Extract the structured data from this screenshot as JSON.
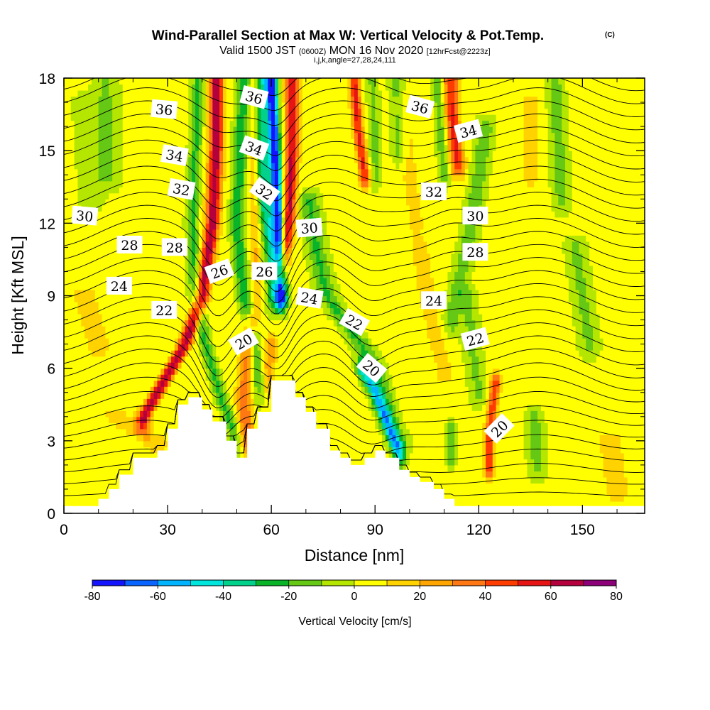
{
  "title": {
    "main": "Wind-Parallel Section at Max W: Vertical Velocity & Pot.Temp.",
    "copyright": "(C)",
    "valid_prefix": "Valid 1500 JST",
    "zulu": "(0600Z)",
    "valid_date": "MON 16 Nov 2020",
    "forecast": "[12hrFcst@2223z]",
    "indices": "i,j,k,angle=27,28,24,111"
  },
  "colorbar": {
    "label": "Vertical Velocity [cm/s]",
    "tick_labels": [
      "-80",
      "-60",
      "-40",
      "-20",
      "0",
      "20",
      "40",
      "60",
      "80"
    ],
    "levels": [
      -80,
      -70,
      -60,
      -50,
      -40,
      -30,
      -20,
      -10,
      0,
      10,
      20,
      30,
      40,
      50,
      60,
      70,
      80
    ],
    "colors": [
      "#1414ff",
      "#0a64ff",
      "#00b4ff",
      "#00e6dc",
      "#00d28c",
      "#0ab428",
      "#64c814",
      "#b4e600",
      "#ffff00",
      "#ffd200",
      "#ffa500",
      "#ff7814",
      "#ff3c00",
      "#e61414",
      "#b4003c",
      "#8c0078"
    ]
  },
  "chart_data": {
    "type": "heatmap",
    "title": "Wind-Parallel Section at Max W: Vertical Velocity & Pot.Temp.",
    "xlabel": "Distance [nm]",
    "ylabel": "Height [Kft MSL]",
    "xlim": [
      0,
      168
    ],
    "ylim": [
      0,
      18
    ],
    "xticks": [
      0,
      30,
      60,
      90,
      120,
      150
    ],
    "yticks": [
      0,
      3,
      6,
      9,
      12,
      15,
      18
    ],
    "x_tick_labels": [
      "0",
      "30",
      "60",
      "90",
      "120",
      "150"
    ],
    "y_tick_labels": [
      "0",
      "3",
      "6",
      "9",
      "12",
      "15",
      "18"
    ],
    "terrain": {
      "x": [
        0,
        10,
        10,
        13,
        13,
        16,
        16,
        20,
        20,
        27,
        27,
        30,
        30,
        33,
        33,
        36,
        36,
        40,
        40,
        43,
        43,
        47,
        47,
        50,
        50,
        53,
        53,
        56,
        56,
        60,
        60,
        67,
        67,
        70,
        70,
        73,
        73,
        77,
        77,
        80,
        80,
        83,
        83,
        87,
        87,
        90,
        90,
        93,
        93,
        97,
        97,
        100,
        100,
        103,
        103,
        107,
        107,
        110,
        110,
        113,
        113,
        118,
        118,
        168
      ],
      "y": [
        0.3,
        0.3,
        0.6,
        0.6,
        1.0,
        1.0,
        1.6,
        1.6,
        2.3,
        2.3,
        2.6,
        2.6,
        3.5,
        3.5,
        4.5,
        4.5,
        4.8,
        4.8,
        4.3,
        4.3,
        3.8,
        3.8,
        3.0,
        3.0,
        2.3,
        2.3,
        3.5,
        3.5,
        4.2,
        4.2,
        5.5,
        5.5,
        4.8,
        4.8,
        4.2,
        4.2,
        3.5,
        3.5,
        2.6,
        2.6,
        2.3,
        2.3,
        2.0,
        2.0,
        2.3,
        2.3,
        2.6,
        2.6,
        2.3,
        2.3,
        1.8,
        1.8,
        1.5,
        1.5,
        1.3,
        1.3,
        1.0,
        1.0,
        0.6,
        0.6,
        0.3,
        0.3,
        0.3,
        0.3
      ]
    },
    "velocity_features": [
      {
        "x": [
          44,
          44,
          43,
          40,
          35,
          31,
          27,
          23
        ],
        "y": [
          18,
          15,
          12,
          9,
          7,
          6,
          5,
          4
        ],
        "value": 65,
        "sigma_x": 2.0
      },
      {
        "x": [
          39,
          38,
          37,
          38,
          41,
          45,
          50
        ],
        "y": [
          18,
          15,
          12,
          9,
          7,
          5,
          3
        ],
        "value": -25,
        "sigma_x": 1.8
      },
      {
        "x": [
          52,
          51,
          50,
          52,
          55,
          57
        ],
        "y": [
          18,
          15,
          12,
          9,
          7,
          5
        ],
        "value": -30,
        "sigma_x": 2.0
      },
      {
        "x": [
          55,
          55,
          55,
          56
        ],
        "y": [
          18,
          15,
          12,
          9
        ],
        "value": 18,
        "sigma_x": 1.5
      },
      {
        "x": [
          60,
          61,
          62,
          63,
          63
        ],
        "y": [
          18,
          15,
          12,
          10,
          9
        ],
        "value": -80,
        "sigma_x": 1.6
      },
      {
        "x": [
          57,
          57,
          58,
          60,
          61
        ],
        "y": [
          18,
          16,
          13,
          11,
          9
        ],
        "value": -40,
        "sigma_x": 2.2
      },
      {
        "x": [
          66,
          66,
          65,
          63
        ],
        "y": [
          18,
          15,
          12,
          10
        ],
        "value": 60,
        "sigma_x": 1.8
      },
      {
        "x": [
          54,
          53,
          52,
          53
        ],
        "y": [
          8,
          6,
          5,
          3
        ],
        "value": 35,
        "sigma_x": 2.2
      },
      {
        "x": [
          60,
          59,
          58
        ],
        "y": [
          7,
          6,
          5
        ],
        "value": 25,
        "sigma_x": 2.0
      },
      {
        "x": [
          71,
          73,
          76,
          81,
          86,
          90,
          94,
          97
        ],
        "y": [
          13,
          11,
          9,
          8,
          7,
          6,
          4,
          3
        ],
        "value": -25,
        "sigma_x": 2.8
      },
      {
        "x": [
          86,
          90,
          94,
          97
        ],
        "y": [
          6,
          5,
          3.5,
          2.5
        ],
        "value": -45,
        "sigma_x": 1.8
      },
      {
        "x": [
          84,
          85,
          87
        ],
        "y": [
          18,
          16,
          14
        ],
        "value": 50,
        "sigma_x": 1.5
      },
      {
        "x": [
          89,
          90,
          90
        ],
        "y": [
          18,
          16,
          14
        ],
        "value": -15,
        "sigma_x": 1.8
      },
      {
        "x": [
          96,
          97
        ],
        "y": [
          18,
          15
        ],
        "value": -20,
        "sigma_x": 2.0
      },
      {
        "x": [
          112,
          112,
          113,
          114
        ],
        "y": [
          18,
          17,
          15.5,
          14.5
        ],
        "value": 50,
        "sigma_x": 2.0
      },
      {
        "x": [
          108,
          109,
          110
        ],
        "y": [
          18,
          16,
          14
        ],
        "value": -20,
        "sigma_x": 1.5
      },
      {
        "x": [
          122,
          120,
          118,
          115,
          112
        ],
        "y": [
          16,
          14,
          12,
          10,
          8
        ],
        "value": -20,
        "sigma_x": 2.5
      },
      {
        "x": [
          103,
          105,
          108,
          110
        ],
        "y": [
          11,
          9,
          7,
          6
        ],
        "value": 15,
        "sigma_x": 2.5
      },
      {
        "x": [
          117,
          118,
          120
        ],
        "y": [
          9,
          7,
          5
        ],
        "value": -15,
        "sigma_x": 2.5
      },
      {
        "x": [
          125,
          124,
          123,
          123
        ],
        "y": [
          5.5,
          4.5,
          3,
          2
        ],
        "value": 45,
        "sigma_x": 1.5
      },
      {
        "x": [
          112,
          112
        ],
        "y": [
          3.5,
          2.5
        ],
        "value": -25,
        "sigma_x": 1.2
      },
      {
        "x": [
          136,
          137
        ],
        "y": [
          4,
          2
        ],
        "value": -18,
        "sigma_x": 2.5
      },
      {
        "x": [
          142,
          144
        ],
        "y": [
          18,
          13
        ],
        "value": -18,
        "sigma_x": 2.5
      },
      {
        "x": [
          148,
          152
        ],
        "y": [
          11,
          7
        ],
        "value": -15,
        "sigma_x": 3.0
      },
      {
        "x": [
          135,
          135
        ],
        "y": [
          17,
          14
        ],
        "value": 12,
        "sigma_x": 3.0
      },
      {
        "x": [
          12,
          13
        ],
        "y": [
          18,
          14
        ],
        "value": -15,
        "sigma_x": 3.5
      },
      {
        "x": [
          6,
          8
        ],
        "y": [
          17,
          13
        ],
        "value": -10,
        "sigma_x": 3.5
      },
      {
        "x": [
          15,
          20,
          27
        ],
        "y": [
          4,
          3.5,
          3
        ],
        "value": 15,
        "sigma_x": 4.0
      },
      {
        "x": [
          6,
          8,
          10
        ],
        "y": [
          9,
          8,
          7
        ],
        "value": 12,
        "sigma_x": 4.0
      },
      {
        "x": [
          158,
          160
        ],
        "y": [
          3,
          1
        ],
        "value": 12,
        "sigma_x": 4.0
      },
      {
        "x": [
          98,
          100,
          102
        ],
        "y": [
          17,
          14,
          12
        ],
        "value": 10,
        "sigma_x": 3.0
      }
    ],
    "theta_contour_count": 33,
    "theta_labels": [
      {
        "text": "36",
        "x": 29,
        "y": 16.7,
        "angle": 5
      },
      {
        "text": "36",
        "x": 55,
        "y": 17.2,
        "angle": 15
      },
      {
        "text": "36",
        "x": 103,
        "y": 16.8,
        "angle": 15
      },
      {
        "text": "34",
        "x": 32,
        "y": 14.8,
        "angle": 10
      },
      {
        "text": "34",
        "x": 55,
        "y": 15.1,
        "angle": 20
      },
      {
        "text": "34",
        "x": 117,
        "y": 15.8,
        "angle": -15
      },
      {
        "text": "32",
        "x": 34,
        "y": 13.4,
        "angle": 10
      },
      {
        "text": "32",
        "x": 58,
        "y": 13.3,
        "angle": 35
      },
      {
        "text": "32",
        "x": 107,
        "y": 13.3,
        "angle": 0
      },
      {
        "text": "30",
        "x": 6,
        "y": 12.3,
        "angle": 5
      },
      {
        "text": "30",
        "x": 71,
        "y": 11.8,
        "angle": -5
      },
      {
        "text": "30",
        "x": 119,
        "y": 12.3,
        "angle": 0
      },
      {
        "text": "28",
        "x": 19,
        "y": 11.1,
        "angle": 0
      },
      {
        "text": "28",
        "x": 32,
        "y": 11.0,
        "angle": 0
      },
      {
        "text": "28",
        "x": 119,
        "y": 10.8,
        "angle": 0
      },
      {
        "text": "26",
        "x": 45,
        "y": 10.0,
        "angle": -20
      },
      {
        "text": "26",
        "x": 58,
        "y": 10.0,
        "angle": 0
      },
      {
        "text": "24",
        "x": 16,
        "y": 9.4,
        "angle": 0
      },
      {
        "text": "24",
        "x": 71,
        "y": 8.9,
        "angle": 10
      },
      {
        "text": "24",
        "x": 107,
        "y": 8.8,
        "angle": 0
      },
      {
        "text": "22",
        "x": 29,
        "y": 8.4,
        "angle": 0
      },
      {
        "text": "22",
        "x": 84,
        "y": 7.9,
        "angle": 30
      },
      {
        "text": "22",
        "x": 119,
        "y": 7.2,
        "angle": -15
      },
      {
        "text": "20",
        "x": 52,
        "y": 7.1,
        "angle": -30
      },
      {
        "text": "20",
        "x": 89,
        "y": 6.0,
        "angle": 40
      },
      {
        "text": "20",
        "x": 126,
        "y": 3.5,
        "angle": -45
      }
    ]
  }
}
